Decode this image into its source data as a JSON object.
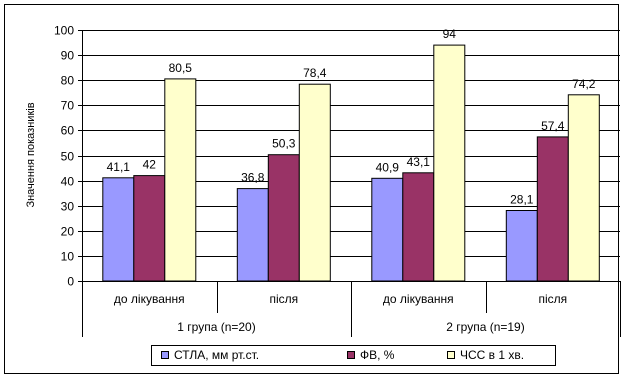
{
  "chart_data": {
    "type": "bar",
    "ylabel": "Значення показників",
    "xlabel": "",
    "ylim": [
      0,
      100
    ],
    "y_ticks": [
      0,
      10,
      20,
      30,
      40,
      50,
      60,
      70,
      80,
      90,
      100
    ],
    "grid": "horizontal",
    "legend_position": "bottom",
    "categories": [
      "до лікування",
      "після",
      "до лікування",
      "після"
    ],
    "groups": [
      {
        "label": "1 група  (n=20)",
        "span": [
          0,
          1
        ]
      },
      {
        "label": "2 група  (n=19)",
        "span": [
          2,
          3
        ]
      }
    ],
    "series": [
      {
        "name": "СТЛА,  мм рт.ст.",
        "color": "#9999ff",
        "values": [
          41.1,
          36.8,
          40.9,
          28.1
        ],
        "labels": [
          "41,1",
          "36,8",
          "40,9",
          "28,1"
        ]
      },
      {
        "name": "ФВ,  %",
        "color": "#993366",
        "values": [
          42,
          50.3,
          43.1,
          57.4
        ],
        "labels": [
          "42",
          "50,3",
          "43,1",
          "57,4"
        ]
      },
      {
        "name": "ЧСС в 1 хв.",
        "color": "#ffffcc",
        "values": [
          80.5,
          78.4,
          94,
          74.2
        ],
        "labels": [
          "80,5",
          "78,4",
          "94",
          "74,2"
        ]
      }
    ]
  }
}
